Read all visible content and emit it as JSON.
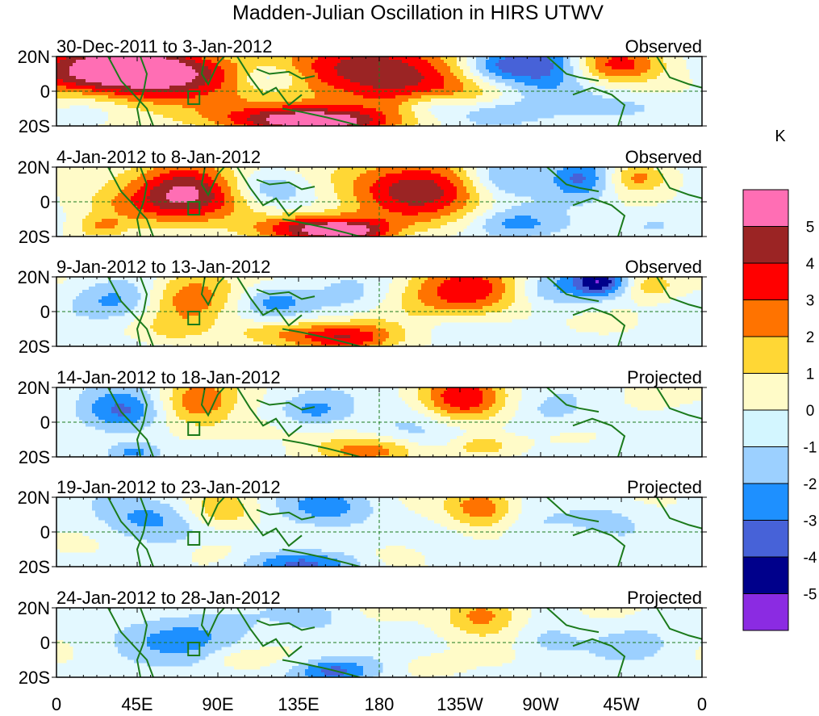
{
  "chart_data": {
    "type": "heatmap",
    "title": "Madden-Julian Oscillation in HIRS UTWV",
    "units": "K",
    "x_ticks": [
      "0",
      "45E",
      "90E",
      "135E",
      "180",
      "135W",
      "90W",
      "45W",
      "0"
    ],
    "y_ticks": [
      "20N",
      "0",
      "20S"
    ],
    "colorbar": {
      "labels": [
        "5",
        "4",
        "3",
        "2",
        "1",
        "0",
        "-1",
        "-2",
        "-3",
        "-4",
        "-5"
      ],
      "colors": [
        "#ff6eb4",
        "#9b2424",
        "#ff0000",
        "#ff7300",
        "#ffd735",
        "#fffbc8",
        "#d3f6ff",
        "#9cd0ff",
        "#1e90ff",
        "#4762d8",
        "#00008b",
        "#8b2be2"
      ]
    },
    "panels": [
      {
        "period": "30-Dec-2011 to 3-Jan-2012",
        "status": "Observed",
        "blobs": [
          [
            0.1,
            0.18,
            0.2,
            0.62,
            3,
            5
          ],
          [
            0.16,
            0.24,
            0.16,
            0.26,
            2,
            3
          ],
          [
            0.51,
            0.26,
            0.2,
            0.7,
            3,
            5
          ],
          [
            0.35,
            0.9,
            0.13,
            0.22,
            2,
            4
          ],
          [
            0.42,
            0.96,
            0.1,
            0.18,
            2,
            3
          ],
          [
            0.87,
            0.1,
            0.08,
            0.28,
            2,
            4
          ],
          [
            0.76,
            0.1,
            0.07,
            0.4,
            2,
            -4
          ],
          [
            0.68,
            0.14,
            0.06,
            0.26,
            2,
            -3
          ],
          [
            0.67,
            0.82,
            0.08,
            0.2,
            2,
            -2
          ],
          [
            0.58,
            0.7,
            0.05,
            0.18,
            2,
            -2
          ],
          [
            0.22,
            0.55,
            0.12,
            0.22,
            2,
            1
          ],
          [
            0.3,
            0.4,
            0.1,
            0.4,
            2,
            -1
          ],
          [
            0.9,
            0.72,
            0.1,
            0.22,
            2,
            -1
          ],
          [
            0.04,
            0.7,
            0.06,
            0.25,
            2,
            -1
          ],
          [
            0.33,
            0.3,
            0.05,
            0.18,
            2,
            -2
          ]
        ]
      },
      {
        "period": "4-Jan-2012 to 8-Jan-2012",
        "status": "Observed",
        "blobs": [
          [
            0.2,
            0.28,
            0.1,
            0.55,
            3,
            5
          ],
          [
            0.1,
            0.55,
            0.09,
            0.3,
            2,
            2
          ],
          [
            0.56,
            0.3,
            0.14,
            0.58,
            3,
            5
          ],
          [
            0.4,
            0.88,
            0.1,
            0.2,
            2,
            5
          ],
          [
            0.46,
            0.96,
            0.06,
            0.16,
            2,
            3
          ],
          [
            0.9,
            0.14,
            0.05,
            0.22,
            2,
            3
          ],
          [
            0.69,
            0.14,
            0.06,
            0.3,
            2,
            -3
          ],
          [
            0.81,
            0.16,
            0.05,
            0.3,
            2,
            -3
          ],
          [
            0.71,
            0.82,
            0.07,
            0.22,
            2,
            -2
          ],
          [
            0.33,
            0.32,
            0.06,
            0.25,
            2,
            -2
          ],
          [
            0.07,
            0.86,
            0.04,
            0.16,
            2,
            2
          ],
          [
            0.28,
            0.52,
            0.1,
            0.25,
            2,
            1
          ],
          [
            0.92,
            0.8,
            0.08,
            0.2,
            2,
            -1
          ]
        ]
      },
      {
        "period": "9-Jan-2012 to 13-Jan-2012",
        "status": "Observed",
        "blobs": [
          [
            0.21,
            0.28,
            0.08,
            0.5,
            3,
            3
          ],
          [
            0.63,
            0.22,
            0.12,
            0.52,
            3,
            4
          ],
          [
            0.45,
            0.88,
            0.08,
            0.22,
            2,
            4
          ],
          [
            0.34,
            0.8,
            0.08,
            0.2,
            2,
            2
          ],
          [
            0.84,
            0.06,
            0.04,
            0.22,
            2,
            -4
          ],
          [
            0.92,
            0.12,
            0.04,
            0.2,
            2,
            2
          ],
          [
            0.09,
            0.35,
            0.06,
            0.26,
            2,
            -2
          ],
          [
            0.18,
            0.78,
            0.05,
            0.2,
            2,
            1
          ],
          [
            0.34,
            0.35,
            0.05,
            0.22,
            2,
            -2
          ],
          [
            0.62,
            0.7,
            0.06,
            0.2,
            2,
            -1
          ],
          [
            0.76,
            0.16,
            0.06,
            0.26,
            2,
            -2
          ],
          [
            0.45,
            0.3,
            0.07,
            0.3,
            2,
            -1
          ]
        ]
      },
      {
        "period": "14-Jan-2012 to 18-Jan-2012",
        "status": "Projected",
        "blobs": [
          [
            0.22,
            0.2,
            0.07,
            0.42,
            3,
            3
          ],
          [
            0.63,
            0.18,
            0.08,
            0.46,
            3,
            4
          ],
          [
            0.48,
            0.92,
            0.08,
            0.2,
            2,
            3
          ],
          [
            0.1,
            0.36,
            0.06,
            0.3,
            2,
            -3
          ],
          [
            0.12,
            0.92,
            0.04,
            0.14,
            2,
            -2
          ],
          [
            0.4,
            0.33,
            0.05,
            0.22,
            2,
            -2
          ],
          [
            0.66,
            0.84,
            0.05,
            0.16,
            2,
            2
          ],
          [
            0.92,
            0.12,
            0.04,
            0.18,
            2,
            1
          ],
          [
            0.77,
            0.36,
            0.06,
            0.24,
            2,
            -1
          ],
          [
            0.28,
            0.6,
            0.08,
            0.22,
            2,
            1
          ],
          [
            0.55,
            0.55,
            0.1,
            0.3,
            2,
            -1
          ]
        ]
      },
      {
        "period": "19-Jan-2012 to 23-Jan-2012",
        "status": "Projected",
        "blobs": [
          [
            0.66,
            0.15,
            0.07,
            0.38,
            3,
            3
          ],
          [
            0.26,
            0.18,
            0.05,
            0.26,
            2,
            2
          ],
          [
            0.42,
            0.16,
            0.07,
            0.28,
            2,
            -2
          ],
          [
            0.14,
            0.3,
            0.07,
            0.3,
            2,
            -2
          ],
          [
            0.38,
            0.96,
            0.08,
            0.2,
            2,
            -3
          ],
          [
            0.53,
            0.82,
            0.05,
            0.18,
            2,
            1
          ],
          [
            0.74,
            0.45,
            0.06,
            0.28,
            2,
            -1
          ],
          [
            0.85,
            0.3,
            0.06,
            0.25,
            2,
            -1
          ],
          [
            0.24,
            0.78,
            0.05,
            0.18,
            2,
            1
          ]
        ]
      },
      {
        "period": "24-Jan-2012 to 28-Jan-2012",
        "status": "Projected",
        "blobs": [
          [
            0.66,
            0.1,
            0.06,
            0.3,
            2,
            3
          ],
          [
            0.2,
            0.42,
            0.1,
            0.36,
            2,
            -2
          ],
          [
            0.4,
            0.14,
            0.05,
            0.22,
            2,
            -1
          ],
          [
            0.43,
            0.92,
            0.06,
            0.18,
            2,
            -3
          ],
          [
            0.58,
            0.82,
            0.05,
            0.16,
            2,
            1
          ],
          [
            0.28,
            0.72,
            0.05,
            0.16,
            2,
            1
          ],
          [
            0.76,
            0.46,
            0.05,
            0.25,
            2,
            -1
          ],
          [
            0.9,
            0.5,
            0.06,
            0.25,
            2,
            -1
          ]
        ]
      }
    ]
  }
}
